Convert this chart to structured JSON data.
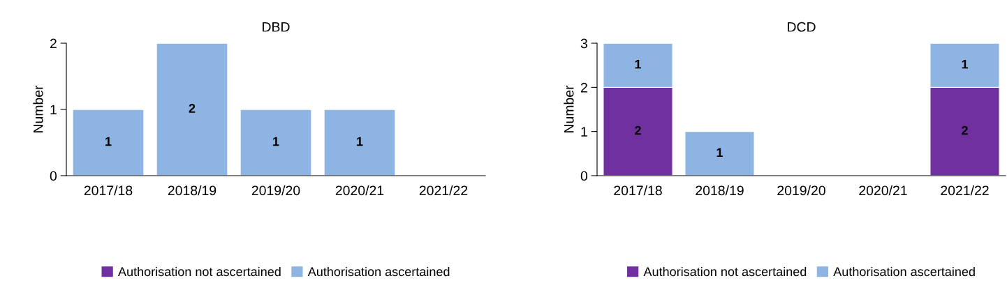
{
  "chart_data": [
    {
      "type": "bar",
      "title": "DBD",
      "ylabel": "Number",
      "stacked": true,
      "legend": "bottom",
      "grid": false,
      "categories": [
        "2017/18",
        "2018/19",
        "2019/20",
        "2020/21",
        "2021/22"
      ],
      "ylim": [
        0,
        2
      ],
      "yticks": [
        0,
        1,
        2
      ],
      "series": [
        {
          "name": "Authorisation not ascertained",
          "color": "#7030a0",
          "values": [
            null,
            null,
            null,
            null,
            null
          ],
          "value_labels": [
            null,
            null,
            null,
            null,
            null
          ]
        },
        {
          "name": "Authorisation ascertained",
          "color": "#8eb4e3",
          "values": [
            1,
            2,
            1,
            1,
            null
          ],
          "value_labels": [
            "1",
            "2",
            "1",
            "1",
            null
          ]
        }
      ]
    },
    {
      "type": "bar",
      "title": "DCD",
      "ylabel": "Number",
      "stacked": true,
      "legend": "bottom",
      "grid": false,
      "categories": [
        "2017/18",
        "2018/19",
        "2019/20",
        "2020/21",
        "2021/22"
      ],
      "ylim": [
        0,
        3
      ],
      "yticks": [
        0,
        1,
        2,
        3
      ],
      "series": [
        {
          "name": "Authorisation not ascertained",
          "color": "#7030a0",
          "values": [
            2,
            null,
            null,
            null,
            2
          ],
          "value_labels": [
            "2",
            null,
            null,
            null,
            "2"
          ]
        },
        {
          "name": "Authorisation ascertained",
          "color": "#8eb4e3",
          "values": [
            1,
            1,
            null,
            null,
            1
          ],
          "value_labels": [
            "1",
            "1",
            null,
            null,
            "1"
          ]
        }
      ]
    }
  ]
}
